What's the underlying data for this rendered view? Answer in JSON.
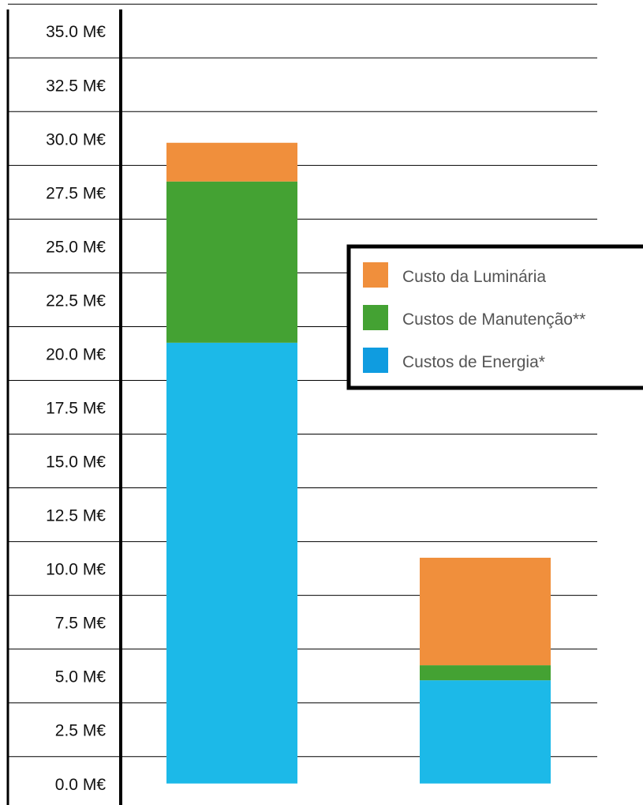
{
  "chart_data": {
    "type": "bar",
    "stacked": true,
    "categories": [
      "",
      ""
    ],
    "series": [
      {
        "name": "Custos de Energia*",
        "values": [
          20.5,
          4.8
        ]
      },
      {
        "name": "Custos de Manutenção**",
        "values": [
          7.5,
          0.7
        ]
      },
      {
        "name": "Custo da Luminária",
        "values": [
          1.8,
          5.0
        ]
      }
    ],
    "y_ticks": [
      "0.0 M€",
      "2.5 M€",
      "5.0 M€",
      "7.5 M€",
      "10.0 M€",
      "12.5 M€",
      "15.0 M€",
      "17.5 M€",
      "20.0 M€",
      "22.5 M€",
      "25.0 M€",
      "27.5 M€",
      "30.0 M€",
      "32.5 M€",
      "35.0 M€"
    ],
    "ylim": [
      -1,
      36
    ],
    "ylabel": "",
    "xlabel": "",
    "title": "",
    "grid": true,
    "legend_placement": "right",
    "colors": {
      "Custo da Luminária": "#F08F3C",
      "Custos de Manutenção**": "#44A233",
      "Custos de Energia*": "#1CB9E8",
      "legend_energia_swatch": "#0F9CE0",
      "grid": "#000000"
    }
  }
}
